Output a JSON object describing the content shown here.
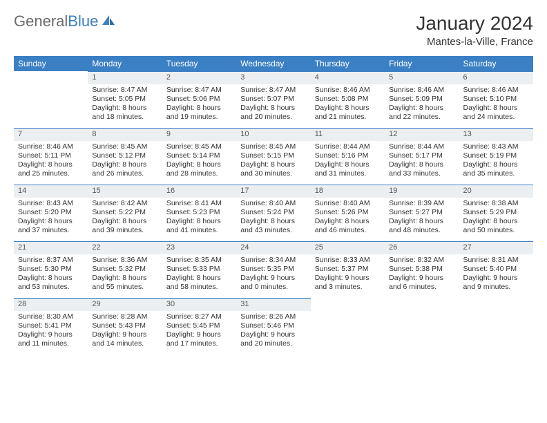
{
  "logo": {
    "part1": "General",
    "part2": "Blue"
  },
  "title": "January 2024",
  "location": "Mantes-la-Ville, France",
  "colors": {
    "header_bg": "#3b7fc4",
    "header_text": "#ffffff",
    "daynum_bg": "#eceff1",
    "border": "#3b7fc4",
    "text": "#333333",
    "logo_gray": "#6b6b6b",
    "logo_blue": "#3b7fc4"
  },
  "weekdays": [
    "Sunday",
    "Monday",
    "Tuesday",
    "Wednesday",
    "Thursday",
    "Friday",
    "Saturday"
  ],
  "weeks": [
    [
      null,
      {
        "n": "1",
        "sr": "8:47 AM",
        "ss": "5:05 PM",
        "dl1": "8 hours",
        "dl2": "and 18 minutes."
      },
      {
        "n": "2",
        "sr": "8:47 AM",
        "ss": "5:06 PM",
        "dl1": "8 hours",
        "dl2": "and 19 minutes."
      },
      {
        "n": "3",
        "sr": "8:47 AM",
        "ss": "5:07 PM",
        "dl1": "8 hours",
        "dl2": "and 20 minutes."
      },
      {
        "n": "4",
        "sr": "8:46 AM",
        "ss": "5:08 PM",
        "dl1": "8 hours",
        "dl2": "and 21 minutes."
      },
      {
        "n": "5",
        "sr": "8:46 AM",
        "ss": "5:09 PM",
        "dl1": "8 hours",
        "dl2": "and 22 minutes."
      },
      {
        "n": "6",
        "sr": "8:46 AM",
        "ss": "5:10 PM",
        "dl1": "8 hours",
        "dl2": "and 24 minutes."
      }
    ],
    [
      {
        "n": "7",
        "sr": "8:46 AM",
        "ss": "5:11 PM",
        "dl1": "8 hours",
        "dl2": "and 25 minutes."
      },
      {
        "n": "8",
        "sr": "8:45 AM",
        "ss": "5:12 PM",
        "dl1": "8 hours",
        "dl2": "and 26 minutes."
      },
      {
        "n": "9",
        "sr": "8:45 AM",
        "ss": "5:14 PM",
        "dl1": "8 hours",
        "dl2": "and 28 minutes."
      },
      {
        "n": "10",
        "sr": "8:45 AM",
        "ss": "5:15 PM",
        "dl1": "8 hours",
        "dl2": "and 30 minutes."
      },
      {
        "n": "11",
        "sr": "8:44 AM",
        "ss": "5:16 PM",
        "dl1": "8 hours",
        "dl2": "and 31 minutes."
      },
      {
        "n": "12",
        "sr": "8:44 AM",
        "ss": "5:17 PM",
        "dl1": "8 hours",
        "dl2": "and 33 minutes."
      },
      {
        "n": "13",
        "sr": "8:43 AM",
        "ss": "5:19 PM",
        "dl1": "8 hours",
        "dl2": "and 35 minutes."
      }
    ],
    [
      {
        "n": "14",
        "sr": "8:43 AM",
        "ss": "5:20 PM",
        "dl1": "8 hours",
        "dl2": "and 37 minutes."
      },
      {
        "n": "15",
        "sr": "8:42 AM",
        "ss": "5:22 PM",
        "dl1": "8 hours",
        "dl2": "and 39 minutes."
      },
      {
        "n": "16",
        "sr": "8:41 AM",
        "ss": "5:23 PM",
        "dl1": "8 hours",
        "dl2": "and 41 minutes."
      },
      {
        "n": "17",
        "sr": "8:40 AM",
        "ss": "5:24 PM",
        "dl1": "8 hours",
        "dl2": "and 43 minutes."
      },
      {
        "n": "18",
        "sr": "8:40 AM",
        "ss": "5:26 PM",
        "dl1": "8 hours",
        "dl2": "and 46 minutes."
      },
      {
        "n": "19",
        "sr": "8:39 AM",
        "ss": "5:27 PM",
        "dl1": "8 hours",
        "dl2": "and 48 minutes."
      },
      {
        "n": "20",
        "sr": "8:38 AM",
        "ss": "5:29 PM",
        "dl1": "8 hours",
        "dl2": "and 50 minutes."
      }
    ],
    [
      {
        "n": "21",
        "sr": "8:37 AM",
        "ss": "5:30 PM",
        "dl1": "8 hours",
        "dl2": "and 53 minutes."
      },
      {
        "n": "22",
        "sr": "8:36 AM",
        "ss": "5:32 PM",
        "dl1": "8 hours",
        "dl2": "and 55 minutes."
      },
      {
        "n": "23",
        "sr": "8:35 AM",
        "ss": "5:33 PM",
        "dl1": "8 hours",
        "dl2": "and 58 minutes."
      },
      {
        "n": "24",
        "sr": "8:34 AM",
        "ss": "5:35 PM",
        "dl1": "9 hours",
        "dl2": "and 0 minutes."
      },
      {
        "n": "25",
        "sr": "8:33 AM",
        "ss": "5:37 PM",
        "dl1": "9 hours",
        "dl2": "and 3 minutes."
      },
      {
        "n": "26",
        "sr": "8:32 AM",
        "ss": "5:38 PM",
        "dl1": "9 hours",
        "dl2": "and 6 minutes."
      },
      {
        "n": "27",
        "sr": "8:31 AM",
        "ss": "5:40 PM",
        "dl1": "9 hours",
        "dl2": "and 9 minutes."
      }
    ],
    [
      {
        "n": "28",
        "sr": "8:30 AM",
        "ss": "5:41 PM",
        "dl1": "9 hours",
        "dl2": "and 11 minutes."
      },
      {
        "n": "29",
        "sr": "8:28 AM",
        "ss": "5:43 PM",
        "dl1": "9 hours",
        "dl2": "and 14 minutes."
      },
      {
        "n": "30",
        "sr": "8:27 AM",
        "ss": "5:45 PM",
        "dl1": "9 hours",
        "dl2": "and 17 minutes."
      },
      {
        "n": "31",
        "sr": "8:26 AM",
        "ss": "5:46 PM",
        "dl1": "9 hours",
        "dl2": "and 20 minutes."
      },
      null,
      null,
      null
    ]
  ],
  "labels": {
    "sunrise": "Sunrise:",
    "sunset": "Sunset:",
    "daylight": "Daylight:"
  }
}
